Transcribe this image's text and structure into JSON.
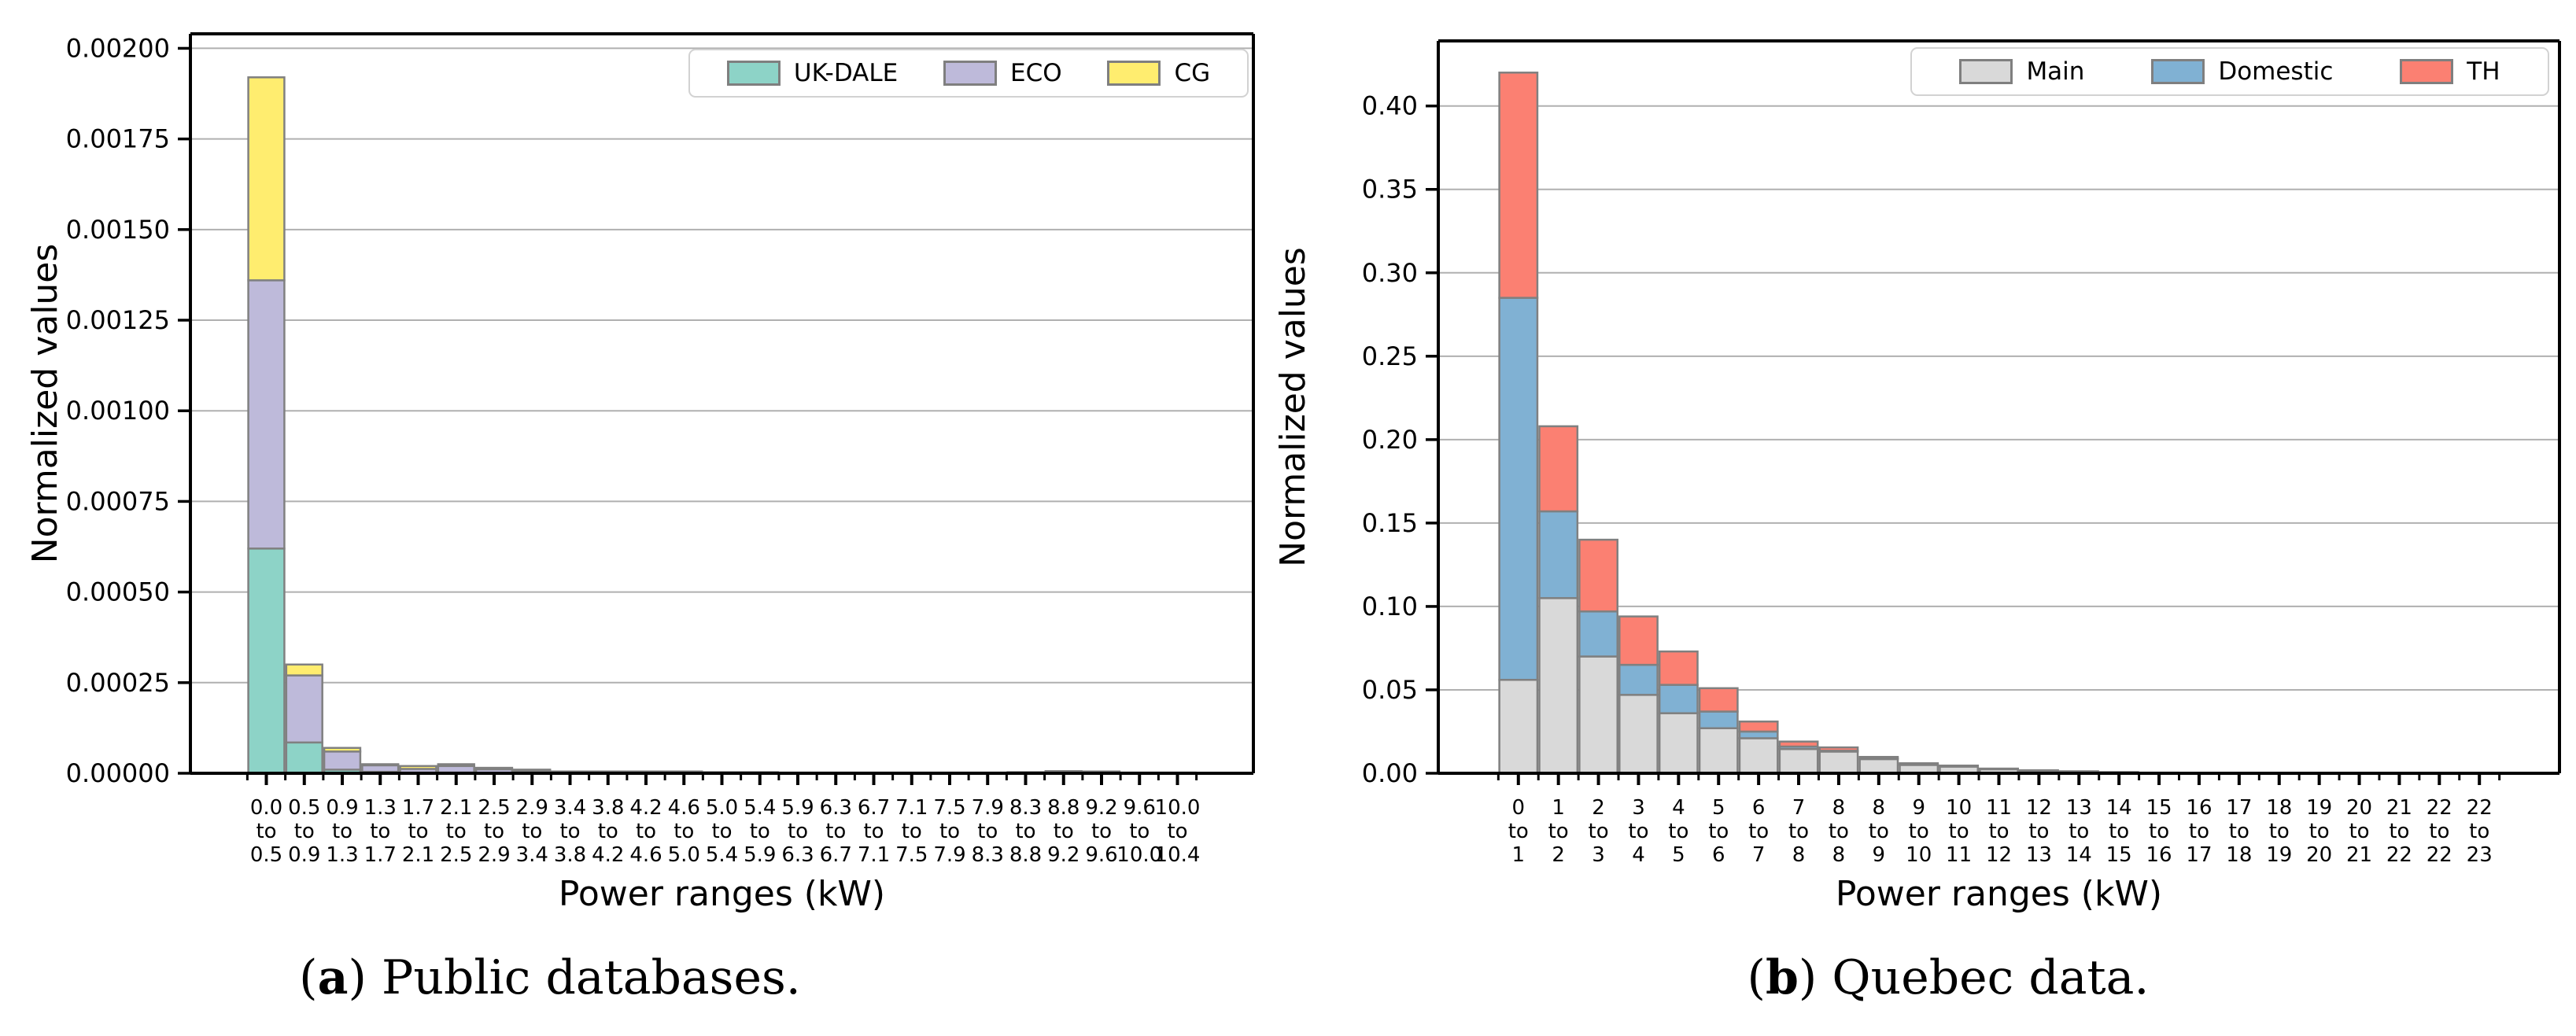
{
  "captions": {
    "a": {
      "open": "(",
      "label": "a",
      "close": ")",
      "text": " Public databases."
    },
    "b": {
      "open": "(",
      "label": "b",
      "close": ")",
      "text": " Quebec data."
    }
  },
  "chart_data": [
    {
      "type": "bar",
      "stacked": true,
      "panel": "a",
      "title": "",
      "xlabel": "Power ranges (kW)",
      "ylabel": "Normalized values",
      "grid": true,
      "legend_position": "upper right",
      "edge_color": "#808080",
      "grid_color": "#b0b0b0",
      "ylim": [
        0,
        0.00204
      ],
      "yticks": {
        "step": 0.00025,
        "max": 0.002,
        "decimals": 5
      },
      "ytick_labels": [
        "0.00000",
        "0.00025",
        "0.00050",
        "0.00075",
        "0.00100",
        "0.00125",
        "0.00150",
        "0.00175",
        "0.00200"
      ],
      "categories": [
        "0.0 to 0.5",
        "0.5 to 0.9",
        "0.9 to 1.3",
        "1.3 to 1.7",
        "1.7 to 2.1",
        "2.1 to 2.5",
        "2.5 to 2.9",
        "2.9 to 3.4",
        "3.4 to 3.8",
        "3.8 to 4.2",
        "4.2 to 4.6",
        "4.6 to 5.0",
        "5.0 to 5.4",
        "5.4 to 5.9",
        "5.9 to 6.3",
        "6.3 to 6.7",
        "6.7 to 7.1",
        "7.1 to 7.5",
        "7.5 to 7.9",
        "7.9 to 8.3",
        "8.3 to 8.8",
        "8.8 to 9.2",
        "9.2 to 9.6",
        "9.6 to 10.0",
        "10.0 to 10.4"
      ],
      "series": [
        {
          "name": "UK-DALE",
          "color": "#8dd3c7",
          "values": [
            0.00062,
            8.5e-05,
            1e-05,
            4e-06,
            2e-06,
            2e-06,
            1e-06,
            1e-06,
            1e-06,
            1e-06,
            1e-06,
            1e-06,
            1e-06,
            1e-06,
            0,
            0,
            0,
            0,
            0,
            0,
            0,
            1e-06,
            1e-06,
            0,
            0
          ]
        },
        {
          "name": "ECO",
          "color": "#bebada",
          "values": [
            0.00074,
            0.000185,
            5e-05,
            1.8e-05,
            1e-05,
            1.8e-05,
            1e-05,
            6e-06,
            2e-06,
            2e-06,
            2e-06,
            2e-06,
            1e-06,
            1e-06,
            1e-06,
            1e-06,
            1e-06,
            1e-06,
            1e-06,
            1e-06,
            2e-06,
            3e-06,
            2e-06,
            1e-06,
            1e-06
          ]
        },
        {
          "name": "CG",
          "color": "#ffed6f",
          "values": [
            0.00056,
            3e-05,
            1e-05,
            3e-06,
            8e-06,
            5e-06,
            4e-06,
            3e-06,
            2e-06,
            2e-06,
            2e-06,
            2e-06,
            1e-06,
            1e-06,
            1e-06,
            1e-06,
            1e-06,
            1e-06,
            1e-06,
            1e-06,
            1e-06,
            2e-06,
            2e-06,
            1e-06,
            1e-06
          ]
        }
      ]
    },
    {
      "type": "bar",
      "stacked": true,
      "panel": "b",
      "title": "",
      "xlabel": "Power ranges (kW)",
      "ylabel": "Normalized values",
      "grid": true,
      "legend_position": "upper right",
      "edge_color": "#808080",
      "grid_color": "#b0b0b0",
      "ylim": [
        0,
        0.439
      ],
      "yticks": {
        "step": 0.05,
        "max": 0.4,
        "decimals": 2
      },
      "ytick_labels": [
        "0.00",
        "0.05",
        "0.10",
        "0.15",
        "0.20",
        "0.25",
        "0.30",
        "0.35",
        "0.40"
      ],
      "categories": [
        "0 to 1",
        "1 to 2",
        "2 to 3",
        "3 to 4",
        "4 to 5",
        "5 to 6",
        "6 to 7",
        "7 to 8",
        "8 to 8",
        "8 to 9",
        "9 to 10",
        "10 to 11",
        "11 to 12",
        "12 to 13",
        "13 to 14",
        "14 to 15",
        "15 to 16",
        "16 to 17",
        "17 to 18",
        "18 to 19",
        "19 to 20",
        "20 to 21",
        "21 to 22",
        "22 to 22",
        "22 to 23"
      ],
      "series": [
        {
          "name": "Main",
          "color": "#d9d9d9",
          "values": [
            0.056,
            0.105,
            0.07,
            0.047,
            0.036,
            0.027,
            0.021,
            0.0145,
            0.013,
            0.0085,
            0.005,
            0.004,
            0.0025,
            0.0015,
            0.001,
            0.0006,
            0.0004,
            0.0002,
            0.0002,
            0.0001,
            0.0001,
            0.0001,
            0.0001,
            0.0001,
            0.0001
          ]
        },
        {
          "name": "Domestic",
          "color": "#80b1d3",
          "values": [
            0.229,
            0.052,
            0.027,
            0.018,
            0.017,
            0.01,
            0.004,
            0.0015,
            0.0005,
            0.0005,
            0.0003,
            0.0002,
            0.0001,
            0.0001,
            0.0001,
            0,
            0,
            0,
            0,
            0,
            0,
            0,
            0,
            0,
            0
          ]
        },
        {
          "name": "TH",
          "color": "#fb8072",
          "values": [
            0.135,
            0.051,
            0.043,
            0.029,
            0.02,
            0.014,
            0.006,
            0.003,
            0.002,
            0.0008,
            0.0007,
            0.0004,
            0.0002,
            0.0002,
            0.0001,
            0.0001,
            0,
            0,
            0,
            0,
            0,
            0,
            0,
            0,
            0
          ]
        }
      ]
    }
  ]
}
